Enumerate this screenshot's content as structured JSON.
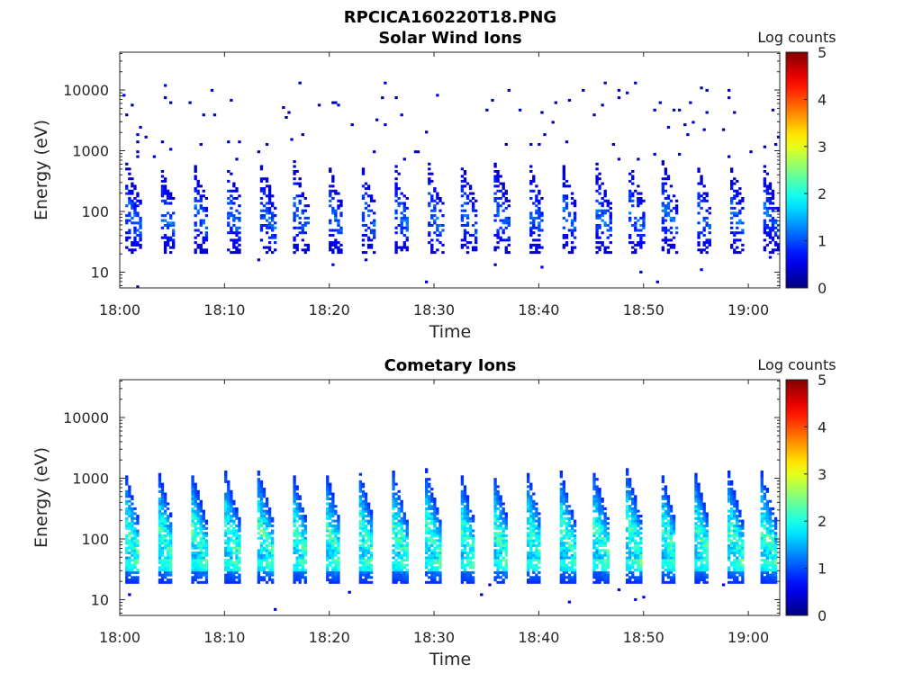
{
  "figure_title": "RPCICA160220T18.PNG",
  "chart_data": [
    {
      "type": "heatmap",
      "title": "Solar Wind Ions",
      "xlabel": "Time",
      "ylabel": "Energy (eV)",
      "x_ticks": [
        "18:00",
        "18:10",
        "18:20",
        "18:30",
        "18:40",
        "18:50",
        "19:00"
      ],
      "x_range": [
        "18:00",
        "19:03"
      ],
      "y_scale": "log",
      "y_ticks": [
        "10",
        "100",
        "1000",
        "10000"
      ],
      "y_range": [
        5.5,
        42000
      ],
      "colorbar": {
        "title": "Log counts",
        "ticks": [
          "0",
          "1",
          "2",
          "3",
          "4",
          "5"
        ],
        "range": [
          0,
          5
        ],
        "colormap": "jet"
      },
      "pattern": {
        "burst_period_min": 3.2,
        "burst_start_min": 0.5,
        "main_band_eV": [
          20,
          700
        ],
        "typical_log_counts": [
          0.3,
          1.4
        ],
        "sparse_points_up_to_eV": 14000
      }
    },
    {
      "type": "heatmap",
      "title": "Cometary Ions",
      "xlabel": "Time",
      "ylabel": "Energy (eV)",
      "x_ticks": [
        "18:00",
        "18:10",
        "18:20",
        "18:30",
        "18:40",
        "18:50",
        "19:00"
      ],
      "x_range": [
        "18:00",
        "19:03"
      ],
      "y_scale": "log",
      "y_ticks": [
        "10",
        "100",
        "1000",
        "10000"
      ],
      "y_range": [
        5.5,
        42000
      ],
      "colorbar": {
        "title": "Log counts",
        "ticks": [
          "0",
          "1",
          "2",
          "3",
          "4",
          "5"
        ],
        "range": [
          0,
          5
        ],
        "colormap": "jet"
      },
      "pattern": {
        "burst_period_min": 3.2,
        "burst_start_min": 0.3,
        "main_band_eV": [
          18,
          1500
        ],
        "typical_log_counts": [
          0.8,
          2.6
        ],
        "bright_band_eV": [
          30,
          45
        ]
      }
    }
  ]
}
